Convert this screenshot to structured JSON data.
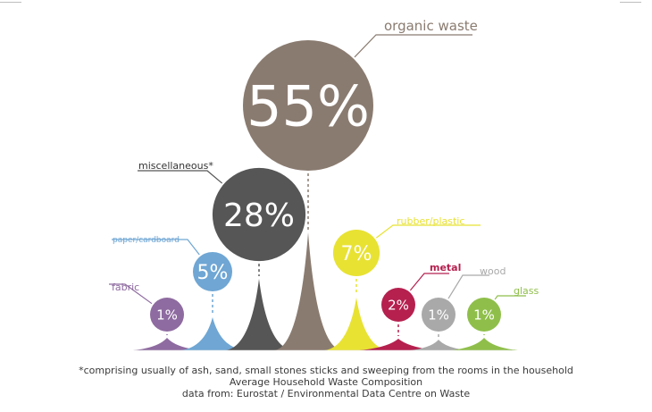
{
  "chart_data": {
    "type": "bubble",
    "title": "Average Household Waste Composition",
    "categories": [
      "fabric",
      "paper/cardboard",
      "miscellaneous",
      "organic waste",
      "rubber/plastic",
      "metal",
      "wood",
      "glass"
    ],
    "values": [
      1,
      5,
      28,
      55,
      7,
      2,
      1,
      1
    ],
    "labels": [
      "1%",
      "5%",
      "28%",
      "55%",
      "7%",
      "2%",
      "1%",
      "1%"
    ],
    "category_suffix": {
      "miscellaneous": "*"
    },
    "colors": {
      "fabric": "#8e6ba0",
      "paper/cardboard": "#6fa6d4",
      "miscellaneous": "#565656",
      "organic waste": "#8a7b70",
      "rubber/plastic": "#e8e233",
      "metal": "#b5204f",
      "wood": "#a9a9a9",
      "glass": "#8fbf4a"
    }
  },
  "notes": {
    "footnote": "*comprising usually of ash, sand, small stones sticks and sweeping from the rooms in the household",
    "caption": "Average Household Waste Composition",
    "source": "data from: Eurostat / Environmental Data Centre on Waste"
  }
}
